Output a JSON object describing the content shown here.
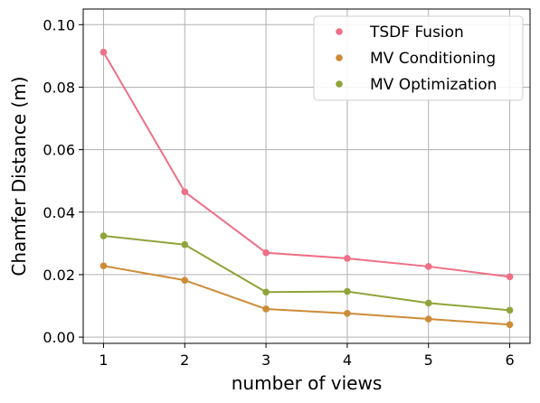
{
  "chart_data": {
    "type": "line",
    "title": "",
    "xlabel": "number of views",
    "ylabel": "Chamfer Distance (m)",
    "x": [
      1,
      2,
      3,
      4,
      5,
      6
    ],
    "xlim": [
      0.75,
      6.25
    ],
    "ylim": [
      -0.002,
      0.105
    ],
    "xticks": [
      1,
      2,
      3,
      4,
      5,
      6
    ],
    "xtick_labels": [
      "1",
      "2",
      "3",
      "4",
      "5",
      "6"
    ],
    "yticks": [
      0.0,
      0.02,
      0.04,
      0.06,
      0.08,
      0.1
    ],
    "ytick_labels": [
      "0.00",
      "0.02",
      "0.04",
      "0.06",
      "0.08",
      "0.10"
    ],
    "grid": true,
    "legend_position": "top-right",
    "series": [
      {
        "name": "TSDF Fusion",
        "color": "#ee6f86",
        "values": [
          0.0912,
          0.0465,
          0.027,
          0.0252,
          0.0226,
          0.0193
        ]
      },
      {
        "name": "MV Conditioning",
        "color": "#cd8b37",
        "values": [
          0.0228,
          0.0182,
          0.009,
          0.0076,
          0.0058,
          0.004
        ]
      },
      {
        "name": "MV Optimization",
        "color": "#8fa43a",
        "values": [
          0.0324,
          0.0296,
          0.0144,
          0.0146,
          0.0109,
          0.0086
        ]
      }
    ]
  }
}
